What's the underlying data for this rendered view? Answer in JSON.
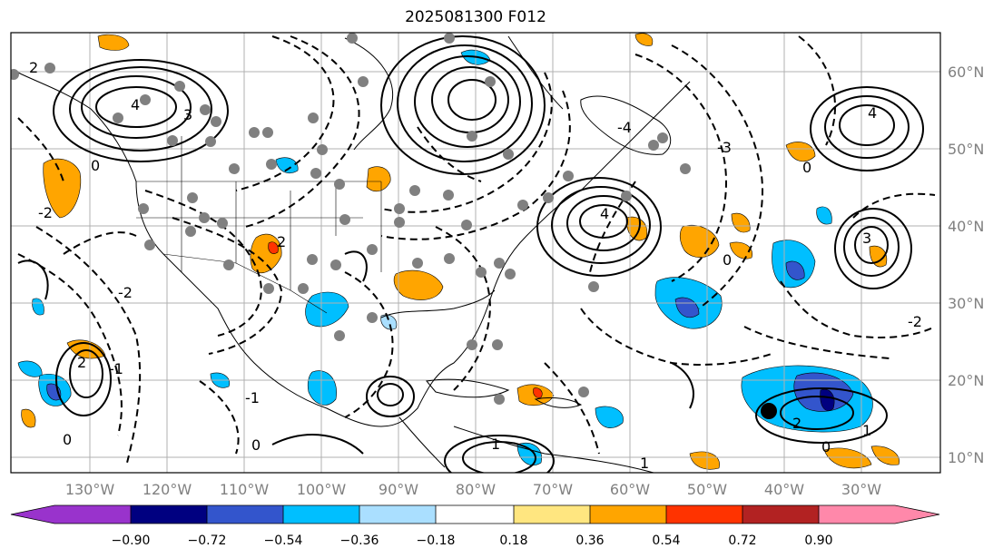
{
  "title": "2025081300 F012",
  "map": {
    "lat_labels": [
      "60°N",
      "50°N",
      "40°N",
      "30°N",
      "20°N",
      "10°N"
    ],
    "lon_labels": [
      "130°W",
      "120°W",
      "110°W",
      "100°W",
      "90°W",
      "80°W",
      "70°W",
      "60°W",
      "50°W",
      "40°W",
      "30°W"
    ],
    "contour_labels": [
      "4",
      "3",
      "2",
      "1",
      "0",
      "-1",
      "-2",
      "-3",
      "-4"
    ]
  },
  "colorbar": {
    "ticks": [
      "−0.90",
      "−0.72",
      "−0.54",
      "−0.36",
      "−0.18",
      "0.18",
      "0.36",
      "0.54",
      "0.72",
      "0.90"
    ],
    "colors": [
      "#9933cc",
      "#000080",
      "#3355cc",
      "#00bfff",
      "#aadfff",
      "#ffffff",
      "#ffe680",
      "#ffa500",
      "#ff3300",
      "#b22222",
      "#ff88aa"
    ]
  }
}
